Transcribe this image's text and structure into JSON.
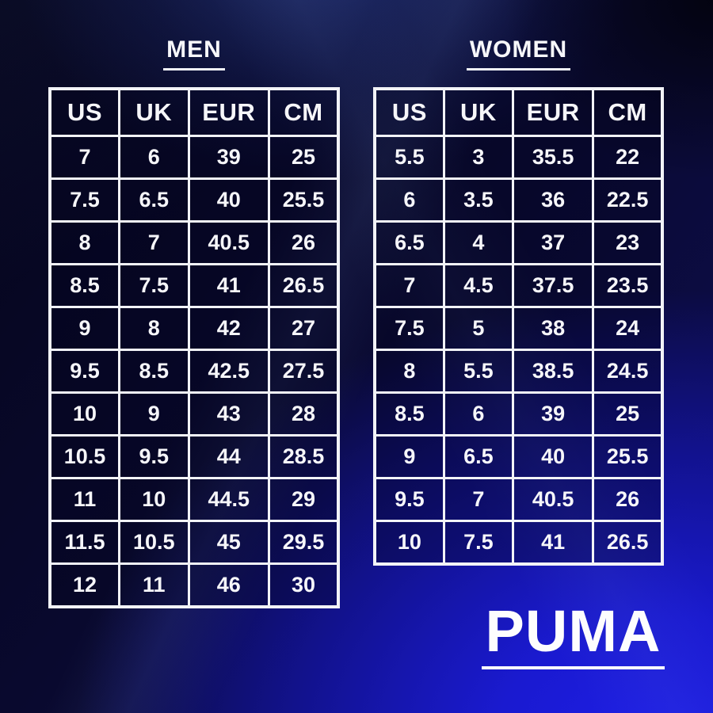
{
  "brand": {
    "logo_text": "PUMA"
  },
  "colors": {
    "background_dark_navy": "#07071f",
    "background_bright_blue": "#1e1ee8",
    "table_border": "#f2f3f7",
    "text": "#f6f6f9"
  },
  "chart_data": [
    {
      "type": "table",
      "title": "MEN",
      "columns": [
        "US",
        "UK",
        "EUR",
        "CM"
      ],
      "rows": [
        [
          "7",
          "6",
          "39",
          "25"
        ],
        [
          "7.5",
          "6.5",
          "40",
          "25.5"
        ],
        [
          "8",
          "7",
          "40.5",
          "26"
        ],
        [
          "8.5",
          "7.5",
          "41",
          "26.5"
        ],
        [
          "9",
          "8",
          "42",
          "27"
        ],
        [
          "9.5",
          "8.5",
          "42.5",
          "27.5"
        ],
        [
          "10",
          "9",
          "43",
          "28"
        ],
        [
          "10.5",
          "9.5",
          "44",
          "28.5"
        ],
        [
          "11",
          "10",
          "44.5",
          "29"
        ],
        [
          "11.5",
          "10.5",
          "45",
          "29.5"
        ],
        [
          "12",
          "11",
          "46",
          "30"
        ]
      ]
    },
    {
      "type": "table",
      "title": "WOMEN",
      "columns": [
        "US",
        "UK",
        "EUR",
        "CM"
      ],
      "rows": [
        [
          "5.5",
          "3",
          "35.5",
          "22"
        ],
        [
          "6",
          "3.5",
          "36",
          "22.5"
        ],
        [
          "6.5",
          "4",
          "37",
          "23"
        ],
        [
          "7",
          "4.5",
          "37.5",
          "23.5"
        ],
        [
          "7.5",
          "5",
          "38",
          "24"
        ],
        [
          "8",
          "5.5",
          "38.5",
          "24.5"
        ],
        [
          "8.5",
          "6",
          "39",
          "25"
        ],
        [
          "9",
          "6.5",
          "40",
          "25.5"
        ],
        [
          "9.5",
          "7",
          "40.5",
          "26"
        ],
        [
          "10",
          "7.5",
          "41",
          "26.5"
        ]
      ]
    }
  ]
}
